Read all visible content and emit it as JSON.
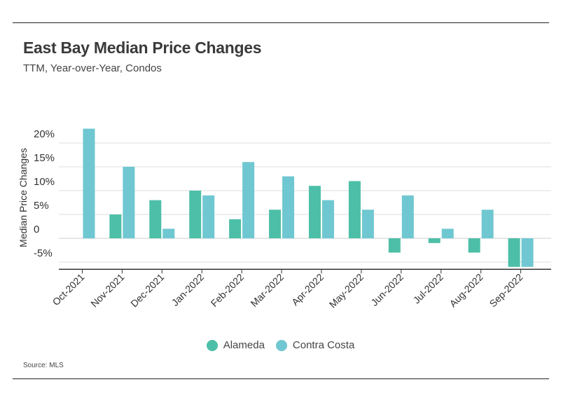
{
  "header": {
    "title": "East Bay Median Price Changes",
    "subtitle": "TTM, Year-over-Year, Condos"
  },
  "footer": {
    "source": "Source:  MLS"
  },
  "colors": {
    "alameda": "#4dbfa8",
    "contra_costa": "#6fc7d1",
    "grid": "#dddddd",
    "axis": "#333333"
  },
  "chart_data": {
    "type": "bar",
    "title": "East Bay Median Price Changes",
    "subtitle": "TTM, Year-over-Year, Condos",
    "xlabel": "",
    "ylabel": "Median Price Changes",
    "ylim": [
      -6.5,
      22.5
    ],
    "yticks": [
      -5,
      0,
      5,
      10,
      15,
      20
    ],
    "ytick_labels": [
      "-5%",
      "0",
      "5%",
      "10%",
      "15%",
      "20%"
    ],
    "categories": [
      "Oct-2021",
      "Nov-2021",
      "Dec-2021",
      "Jan-2022",
      "Feb-2022",
      "Mar-2022",
      "Apr-2022",
      "May-2022",
      "Jun-2022",
      "Jul-2022",
      "Aug-2022",
      "Sep-2022"
    ],
    "series": [
      {
        "name": "Alameda",
        "values": [
          null,
          5,
          8,
          10,
          4,
          6,
          11,
          12,
          -3,
          -1,
          -3,
          -6
        ]
      },
      {
        "name": "Contra Costa",
        "values": [
          23,
          15,
          2,
          9,
          16,
          13,
          8,
          6,
          9,
          2,
          6,
          -6
        ]
      }
    ],
    "grid": true,
    "legend_position": "bottom"
  }
}
